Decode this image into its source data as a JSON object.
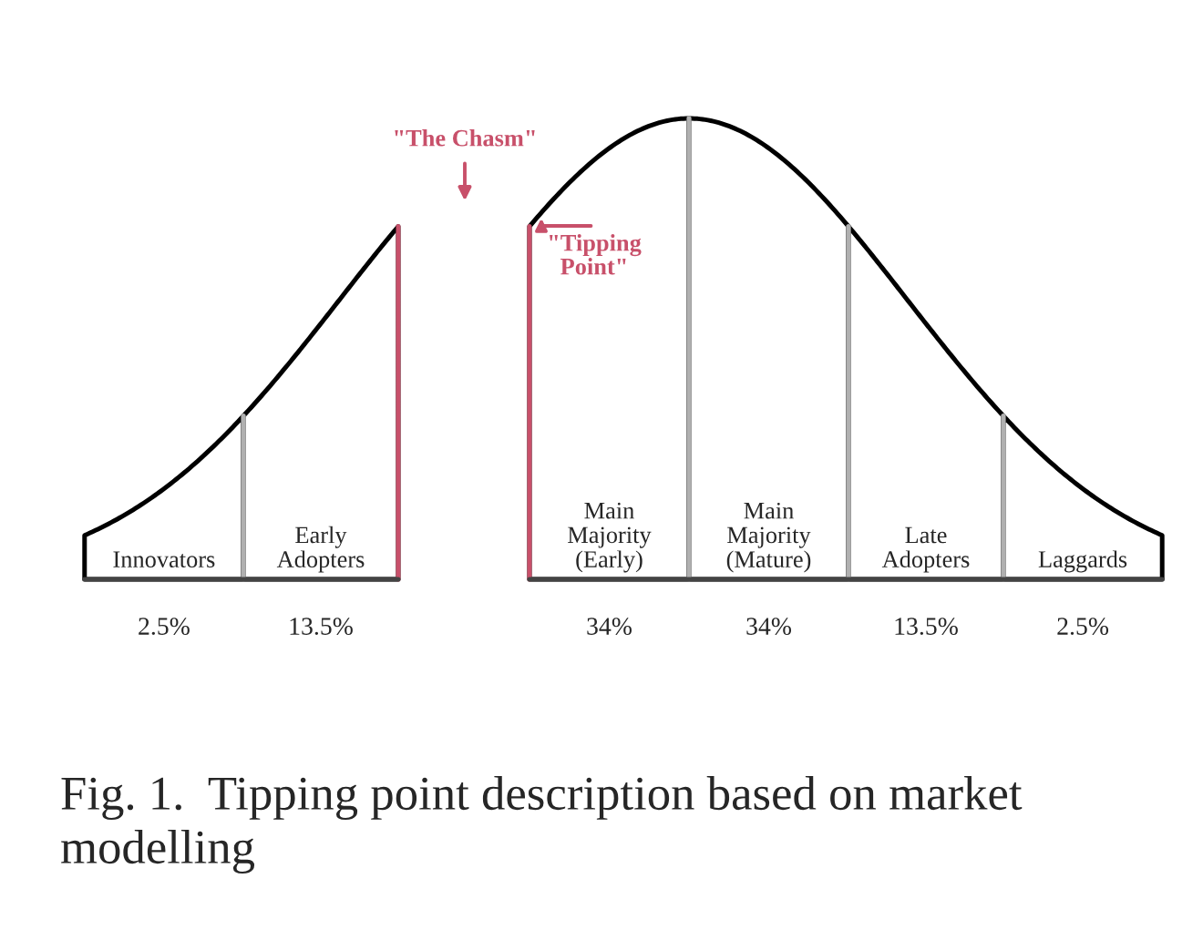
{
  "chart_data": {
    "type": "other",
    "categories": [
      "Innovators",
      "Early\nAdopters",
      "Main\nMajority\n(Early)",
      "Main\nMajority\n(Mature)",
      "Late\nAdopters",
      "Laggards"
    ],
    "values": [
      2.5,
      13.5,
      34,
      34,
      13.5,
      2.5
    ],
    "value_labels": [
      "2.5%",
      "13.5%",
      "34%",
      "34%",
      "13.5%",
      "2.5%"
    ],
    "annotations": [
      "\"The Chasm\"",
      "\"Tipping\nPoint\"",
      "Fig. 1.  Tipping point description based on market modelling"
    ]
  }
}
